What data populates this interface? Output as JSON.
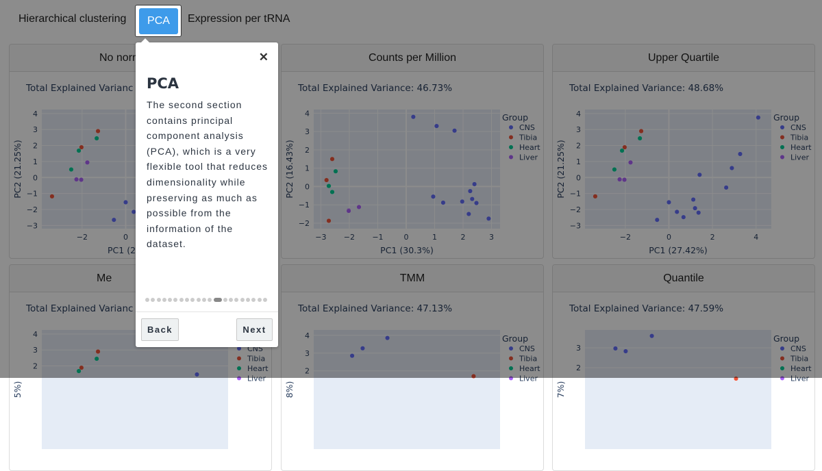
{
  "tabs": [
    {
      "label": "Hierarchical clustering",
      "active": false
    },
    {
      "label": "PCA",
      "active": true
    },
    {
      "label": "Expression per tRNA",
      "active": false
    }
  ],
  "colors": {
    "accent": "#3e9bea",
    "CNS": "#636efa",
    "Tibia": "#ef553b",
    "Heart": "#00cc96",
    "Liver": "#ab63fa",
    "plot_bg": "#e5ecf6"
  },
  "tour": {
    "title": "PCA",
    "body": "The second section contains principal component analysis (PCA), which is a very flexible tool that reduces dimensionality while preserving as much as possible from the information of the dataset.",
    "close_icon": "close-icon",
    "step_count": 21,
    "active_step": 13,
    "back_label": "Back",
    "next_label": "Next"
  },
  "panels": [
    {
      "title": "No norm",
      "variance": "Total Explained Varianc"
    },
    {
      "title": "Counts per Million",
      "variance": "Total Explained Variance: 46.73%"
    },
    {
      "title": "Upper Quartile",
      "variance": "Total Explained Variance: 48.68%"
    },
    {
      "title": "Me",
      "variance": "Total Explained Varianc"
    },
    {
      "title": "TMM",
      "variance": "Total Explained Variance: 47.13%"
    },
    {
      "title": "Quantile",
      "variance": "Total Explained Variance: 47.59%"
    }
  ],
  "chart_data": [
    {
      "type": "scatter",
      "xlabel": "PC1 (2",
      "ylabel": "PC2 (21.25%)",
      "xlim": [
        -3.85,
        4.7
      ],
      "ylim": [
        -3.2,
        4.25
      ],
      "xticks": [
        -2,
        0
      ],
      "yticks": [
        -3,
        -2,
        -1,
        0,
        1,
        2,
        3,
        4
      ],
      "legend_title": "",
      "series": [
        {
          "name": "CNS",
          "points": [
            [
              4.1,
              3.75
            ],
            [
              3.27,
              1.47
            ],
            [
              2.89,
              0.59
            ],
            [
              1.41,
              0.17
            ],
            [
              2.63,
              -0.63
            ],
            [
              0,
              -1.55
            ],
            [
              1.12,
              -1.38
            ],
            [
              1.2,
              -1.92
            ],
            [
              1.36,
              -2.2
            ],
            [
              0.37,
              -2.15
            ],
            [
              0.67,
              -2.48
            ],
            [
              -0.54,
              -2.65
            ]
          ]
        },
        {
          "name": "Tibia",
          "points": [
            [
              -1.27,
              2.9
            ],
            [
              -2.03,
              1.89
            ],
            [
              -3.38,
              -1.18
            ]
          ]
        },
        {
          "name": "Heart",
          "points": [
            [
              -1.33,
              2.45
            ],
            [
              -2.15,
              1.68
            ],
            [
              -2.5,
              0.5
            ]
          ]
        },
        {
          "name": "Liver",
          "points": [
            [
              -1.76,
              0.94
            ],
            [
              -2.26,
              -0.12
            ],
            [
              -2.04,
              -0.14
            ]
          ]
        }
      ]
    },
    {
      "type": "scatter",
      "xlabel": "PC1 (30.3%)",
      "ylabel": "PC2 (16.43%)",
      "xlim": [
        -3.25,
        3.3
      ],
      "ylim": [
        -2.3,
        4.2
      ],
      "xticks": [
        -3,
        -2,
        -1,
        0,
        1,
        2,
        3
      ],
      "yticks": [
        -2,
        -1,
        0,
        1,
        2,
        3,
        4
      ],
      "legend_title": "Group",
      "series": [
        {
          "name": "CNS",
          "points": [
            [
              0.25,
              3.8
            ],
            [
              1.07,
              3.3
            ],
            [
              1.7,
              3.05
            ],
            [
              0.95,
              -0.55
            ],
            [
              1.3,
              -0.88
            ],
            [
              1.97,
              -0.82
            ],
            [
              2.2,
              -1.5
            ],
            [
              2.25,
              -0.25
            ],
            [
              2.4,
              0.13
            ],
            [
              2.32,
              -0.68
            ],
            [
              2.47,
              -0.9
            ],
            [
              2.9,
              -1.75
            ]
          ]
        },
        {
          "name": "Tibia",
          "points": [
            [
              -2.6,
              1.5
            ],
            [
              -2.8,
              0.35
            ],
            [
              -2.72,
              -1.87
            ]
          ]
        },
        {
          "name": "Heart",
          "points": [
            [
              -2.48,
              0.83
            ],
            [
              -2.72,
              0.03
            ],
            [
              -2.6,
              -0.3
            ]
          ]
        },
        {
          "name": "Liver",
          "points": [
            [
              -2.02,
              -1.3
            ],
            [
              -2.02,
              -1.33
            ],
            [
              -1.66,
              -1.12
            ]
          ]
        }
      ]
    },
    {
      "type": "scatter",
      "xlabel": "PC1 (27.42%)",
      "ylabel": "PC2 (21.25%)",
      "xlim": [
        -3.85,
        4.7
      ],
      "ylim": [
        -3.2,
        4.25
      ],
      "xticks": [
        -2,
        0,
        2,
        4
      ],
      "yticks": [
        -3,
        -2,
        -1,
        0,
        1,
        2,
        3,
        4
      ],
      "legend_title": "Group",
      "series": [
        {
          "name": "CNS",
          "points": [
            [
              4.1,
              3.75
            ],
            [
              3.27,
              1.47
            ],
            [
              2.89,
              0.59
            ],
            [
              1.41,
              0.17
            ],
            [
              2.63,
              -0.63
            ],
            [
              0,
              -1.55
            ],
            [
              1.12,
              -1.38
            ],
            [
              1.2,
              -1.92
            ],
            [
              1.36,
              -2.2
            ],
            [
              0.37,
              -2.15
            ],
            [
              0.67,
              -2.48
            ],
            [
              -0.54,
              -2.65
            ]
          ]
        },
        {
          "name": "Tibia",
          "points": [
            [
              -1.27,
              2.9
            ],
            [
              -2.03,
              1.89
            ],
            [
              -3.38,
              -1.18
            ]
          ]
        },
        {
          "name": "Heart",
          "points": [
            [
              -1.33,
              2.45
            ],
            [
              -2.15,
              1.68
            ],
            [
              -2.5,
              0.5
            ]
          ]
        },
        {
          "name": "Liver",
          "points": [
            [
              -1.76,
              0.94
            ],
            [
              -2.26,
              -0.12
            ],
            [
              -2.04,
              -0.14
            ]
          ]
        }
      ]
    },
    {
      "type": "scatter",
      "xlabel": "",
      "ylabel": "5%)",
      "xlim": [
        -3.85,
        4.7
      ],
      "ylim": [
        -3.2,
        4.25
      ],
      "xticks": [],
      "yticks": [
        2,
        3,
        4
      ],
      "legend_title": "",
      "series": [
        {
          "name": "CNS",
          "points": [
            [
              3.27,
              1.47
            ]
          ]
        },
        {
          "name": "Tibia",
          "points": [
            [
              -1.27,
              2.9
            ],
            [
              -2.03,
              1.89
            ]
          ]
        },
        {
          "name": "Heart",
          "points": [
            [
              -1.33,
              2.45
            ],
            [
              -2.15,
              1.68
            ]
          ]
        },
        {
          "name": "Liver",
          "points": []
        }
      ]
    },
    {
      "type": "scatter",
      "xlabel": "",
      "ylabel": "8%)",
      "xlim": [
        -3.25,
        3.3
      ],
      "ylim": [
        -2.4,
        4.3
      ],
      "xticks": [],
      "yticks": [
        2,
        3,
        4
      ],
      "legend_title": "Group",
      "series": [
        {
          "name": "CNS",
          "points": [
            [
              -1.9,
              2.85
            ],
            [
              -1.53,
              3.27
            ],
            [
              -0.66,
              3.85
            ]
          ]
        },
        {
          "name": "Tibia",
          "points": [
            [
              2.37,
              1.7
            ]
          ]
        },
        {
          "name": "Heart",
          "points": []
        },
        {
          "name": "Liver",
          "points": []
        }
      ]
    },
    {
      "type": "scatter",
      "xlabel": "",
      "ylabel": "7%)",
      "xlim": [
        -3.25,
        3.3
      ],
      "ylim": [
        -2.1,
        3.9
      ],
      "xticks": [],
      "yticks": [
        2,
        3
      ],
      "legend_title": "Group",
      "series": [
        {
          "name": "CNS",
          "points": [
            [
              -2.18,
              2.97
            ],
            [
              -1.82,
              2.83
            ],
            [
              -0.9,
              3.6
            ]
          ]
        },
        {
          "name": "Tibia",
          "points": [
            [
              2.06,
              1.45
            ]
          ]
        },
        {
          "name": "Heart",
          "points": []
        },
        {
          "name": "Liver",
          "points": []
        }
      ]
    }
  ]
}
